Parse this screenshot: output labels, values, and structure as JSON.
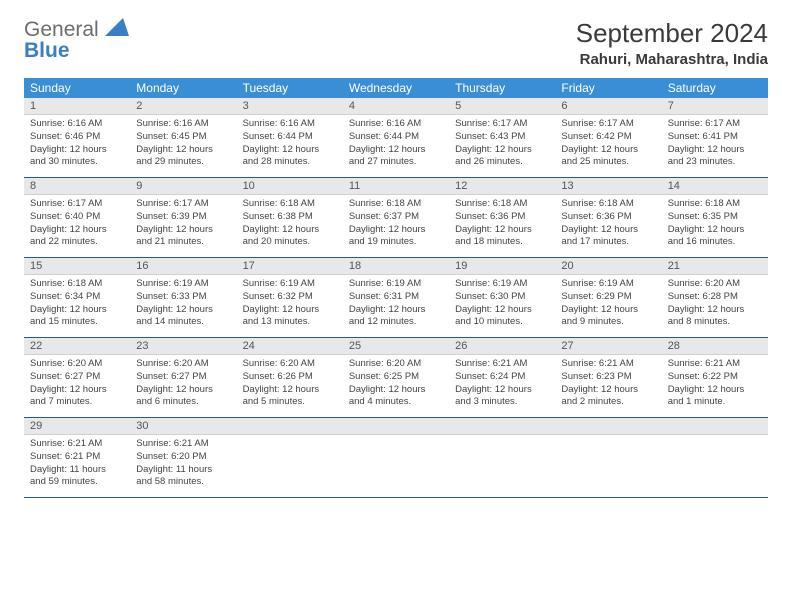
{
  "logo": {
    "line1": "General",
    "line2": "Blue"
  },
  "title": "September 2024",
  "location": "Rahuri, Maharashtra, India",
  "colors": {
    "header_bg": "#3a8fd4",
    "header_text": "#ffffff",
    "row_border": "#2b5a87",
    "daynum_bg": "#e8e8e8",
    "text": "#444444",
    "logo_gray": "#6d6d6d",
    "logo_blue": "#3a7fc4"
  },
  "typography": {
    "title_fontsize": 26,
    "location_fontsize": 15,
    "dayheader_fontsize": 12,
    "daynum_fontsize": 11,
    "body_fontsize": 9.5
  },
  "day_names": [
    "Sunday",
    "Monday",
    "Tuesday",
    "Wednesday",
    "Thursday",
    "Friday",
    "Saturday"
  ],
  "weeks": [
    [
      {
        "n": "1",
        "sr": "Sunrise: 6:16 AM",
        "ss": "Sunset: 6:46 PM",
        "dl": "Daylight: 12 hours and 30 minutes."
      },
      {
        "n": "2",
        "sr": "Sunrise: 6:16 AM",
        "ss": "Sunset: 6:45 PM",
        "dl": "Daylight: 12 hours and 29 minutes."
      },
      {
        "n": "3",
        "sr": "Sunrise: 6:16 AM",
        "ss": "Sunset: 6:44 PM",
        "dl": "Daylight: 12 hours and 28 minutes."
      },
      {
        "n": "4",
        "sr": "Sunrise: 6:16 AM",
        "ss": "Sunset: 6:44 PM",
        "dl": "Daylight: 12 hours and 27 minutes."
      },
      {
        "n": "5",
        "sr": "Sunrise: 6:17 AM",
        "ss": "Sunset: 6:43 PM",
        "dl": "Daylight: 12 hours and 26 minutes."
      },
      {
        "n": "6",
        "sr": "Sunrise: 6:17 AM",
        "ss": "Sunset: 6:42 PM",
        "dl": "Daylight: 12 hours and 25 minutes."
      },
      {
        "n": "7",
        "sr": "Sunrise: 6:17 AM",
        "ss": "Sunset: 6:41 PM",
        "dl": "Daylight: 12 hours and 23 minutes."
      }
    ],
    [
      {
        "n": "8",
        "sr": "Sunrise: 6:17 AM",
        "ss": "Sunset: 6:40 PM",
        "dl": "Daylight: 12 hours and 22 minutes."
      },
      {
        "n": "9",
        "sr": "Sunrise: 6:17 AM",
        "ss": "Sunset: 6:39 PM",
        "dl": "Daylight: 12 hours and 21 minutes."
      },
      {
        "n": "10",
        "sr": "Sunrise: 6:18 AM",
        "ss": "Sunset: 6:38 PM",
        "dl": "Daylight: 12 hours and 20 minutes."
      },
      {
        "n": "11",
        "sr": "Sunrise: 6:18 AM",
        "ss": "Sunset: 6:37 PM",
        "dl": "Daylight: 12 hours and 19 minutes."
      },
      {
        "n": "12",
        "sr": "Sunrise: 6:18 AM",
        "ss": "Sunset: 6:36 PM",
        "dl": "Daylight: 12 hours and 18 minutes."
      },
      {
        "n": "13",
        "sr": "Sunrise: 6:18 AM",
        "ss": "Sunset: 6:36 PM",
        "dl": "Daylight: 12 hours and 17 minutes."
      },
      {
        "n": "14",
        "sr": "Sunrise: 6:18 AM",
        "ss": "Sunset: 6:35 PM",
        "dl": "Daylight: 12 hours and 16 minutes."
      }
    ],
    [
      {
        "n": "15",
        "sr": "Sunrise: 6:18 AM",
        "ss": "Sunset: 6:34 PM",
        "dl": "Daylight: 12 hours and 15 minutes."
      },
      {
        "n": "16",
        "sr": "Sunrise: 6:19 AM",
        "ss": "Sunset: 6:33 PM",
        "dl": "Daylight: 12 hours and 14 minutes."
      },
      {
        "n": "17",
        "sr": "Sunrise: 6:19 AM",
        "ss": "Sunset: 6:32 PM",
        "dl": "Daylight: 12 hours and 13 minutes."
      },
      {
        "n": "18",
        "sr": "Sunrise: 6:19 AM",
        "ss": "Sunset: 6:31 PM",
        "dl": "Daylight: 12 hours and 12 minutes."
      },
      {
        "n": "19",
        "sr": "Sunrise: 6:19 AM",
        "ss": "Sunset: 6:30 PM",
        "dl": "Daylight: 12 hours and 10 minutes."
      },
      {
        "n": "20",
        "sr": "Sunrise: 6:19 AM",
        "ss": "Sunset: 6:29 PM",
        "dl": "Daylight: 12 hours and 9 minutes."
      },
      {
        "n": "21",
        "sr": "Sunrise: 6:20 AM",
        "ss": "Sunset: 6:28 PM",
        "dl": "Daylight: 12 hours and 8 minutes."
      }
    ],
    [
      {
        "n": "22",
        "sr": "Sunrise: 6:20 AM",
        "ss": "Sunset: 6:27 PM",
        "dl": "Daylight: 12 hours and 7 minutes."
      },
      {
        "n": "23",
        "sr": "Sunrise: 6:20 AM",
        "ss": "Sunset: 6:27 PM",
        "dl": "Daylight: 12 hours and 6 minutes."
      },
      {
        "n": "24",
        "sr": "Sunrise: 6:20 AM",
        "ss": "Sunset: 6:26 PM",
        "dl": "Daylight: 12 hours and 5 minutes."
      },
      {
        "n": "25",
        "sr": "Sunrise: 6:20 AM",
        "ss": "Sunset: 6:25 PM",
        "dl": "Daylight: 12 hours and 4 minutes."
      },
      {
        "n": "26",
        "sr": "Sunrise: 6:21 AM",
        "ss": "Sunset: 6:24 PM",
        "dl": "Daylight: 12 hours and 3 minutes."
      },
      {
        "n": "27",
        "sr": "Sunrise: 6:21 AM",
        "ss": "Sunset: 6:23 PM",
        "dl": "Daylight: 12 hours and 2 minutes."
      },
      {
        "n": "28",
        "sr": "Sunrise: 6:21 AM",
        "ss": "Sunset: 6:22 PM",
        "dl": "Daylight: 12 hours and 1 minute."
      }
    ],
    [
      {
        "n": "29",
        "sr": "Sunrise: 6:21 AM",
        "ss": "Sunset: 6:21 PM",
        "dl": "Daylight: 11 hours and 59 minutes."
      },
      {
        "n": "30",
        "sr": "Sunrise: 6:21 AM",
        "ss": "Sunset: 6:20 PM",
        "dl": "Daylight: 11 hours and 58 minutes."
      },
      null,
      null,
      null,
      null,
      null
    ]
  ]
}
